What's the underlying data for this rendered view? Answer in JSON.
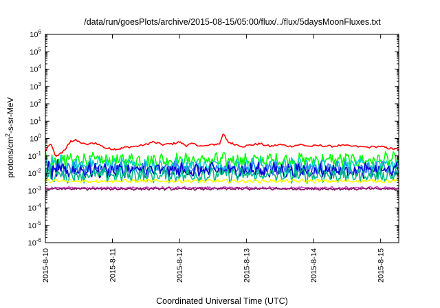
{
  "chart_data": {
    "type": "line",
    "title": "/data/run/goesPlots/archive/2015-08-15/05:00/flux/../flux/5daysMoonFluxes.txt",
    "xlabel": "Coordinated Universal Time (UTC)",
    "ylabel": {
      "main": "protons/cm",
      "sup": "2",
      "rest": "-s-sr-MeV"
    },
    "yscale": "log",
    "ylim_exp": [
      -6,
      6
    ],
    "y_tick_exponents": [
      6,
      5,
      4,
      3,
      2,
      1,
      0,
      -1,
      -2,
      -3,
      -4,
      -5,
      -6
    ],
    "y_tick_base": "10",
    "xlim_days": [
      0,
      5.27
    ],
    "x_ticks": [
      {
        "label": "2015-8-10",
        "day": 0
      },
      {
        "label": "2015-8-11",
        "day": 1
      },
      {
        "label": "2015-8-12",
        "day": 2
      },
      {
        "label": "2015-8-13",
        "day": 3
      },
      {
        "label": "2015-8-14",
        "day": 4
      },
      {
        "label": "2015-8-15",
        "day": 5
      }
    ],
    "grid": false,
    "legend": "none",
    "series": [
      {
        "color": "#ff0000",
        "base_log10": -0.45,
        "points": [
          [
            0,
            -0.7
          ],
          [
            0.08,
            -0.3
          ],
          [
            0.15,
            -1.0
          ],
          [
            0.22,
            -0.9
          ],
          [
            0.3,
            -0.6
          ],
          [
            0.38,
            -0.15
          ],
          [
            0.45,
            -0.1
          ],
          [
            0.6,
            -0.35
          ],
          [
            0.75,
            -0.25
          ],
          [
            0.9,
            -0.55
          ],
          [
            1.0,
            -0.6
          ],
          [
            1.1,
            -0.6
          ],
          [
            1.2,
            -0.5
          ],
          [
            1.35,
            -0.45
          ],
          [
            1.5,
            -0.35
          ],
          [
            1.6,
            -0.2
          ],
          [
            1.75,
            -0.35
          ],
          [
            1.9,
            -0.3
          ],
          [
            2.0,
            -0.2
          ],
          [
            2.1,
            -0.4
          ],
          [
            2.2,
            -0.3
          ],
          [
            2.35,
            -0.45
          ],
          [
            2.5,
            -0.35
          ],
          [
            2.6,
            -0.3
          ],
          [
            2.65,
            0.3
          ],
          [
            2.72,
            -0.2
          ],
          [
            2.8,
            -0.3
          ],
          [
            2.95,
            -0.45
          ],
          [
            3.1,
            -0.35
          ],
          [
            3.2,
            -0.3
          ],
          [
            3.35,
            -0.45
          ],
          [
            3.5,
            -0.35
          ],
          [
            3.65,
            -0.45
          ],
          [
            3.8,
            -0.35
          ],
          [
            3.95,
            -0.45
          ],
          [
            4.1,
            -0.4
          ],
          [
            4.25,
            -0.45
          ],
          [
            4.4,
            -0.4
          ],
          [
            4.6,
            -0.45
          ],
          [
            4.8,
            -0.5
          ],
          [
            5.0,
            -0.45
          ],
          [
            5.1,
            -0.55
          ],
          [
            5.2,
            -0.6
          ],
          [
            5.27,
            -0.6
          ]
        ]
      },
      {
        "color": "#00ff00",
        "base_log10": -1.25
      },
      {
        "color": "#00cccc",
        "base_log10": -1.55
      },
      {
        "color": "#3a78ff",
        "base_log10": -1.75
      },
      {
        "color": "#0000cc",
        "base_log10": -1.85
      },
      {
        "color": "#00bb88",
        "base_log10": -2.1
      },
      {
        "color": "#ffff00",
        "base_log10": -2.45
      },
      {
        "color": "#cc44cc",
        "base_log10": -2.85
      },
      {
        "color": "#881166",
        "base_log10": -2.9
      }
    ]
  }
}
